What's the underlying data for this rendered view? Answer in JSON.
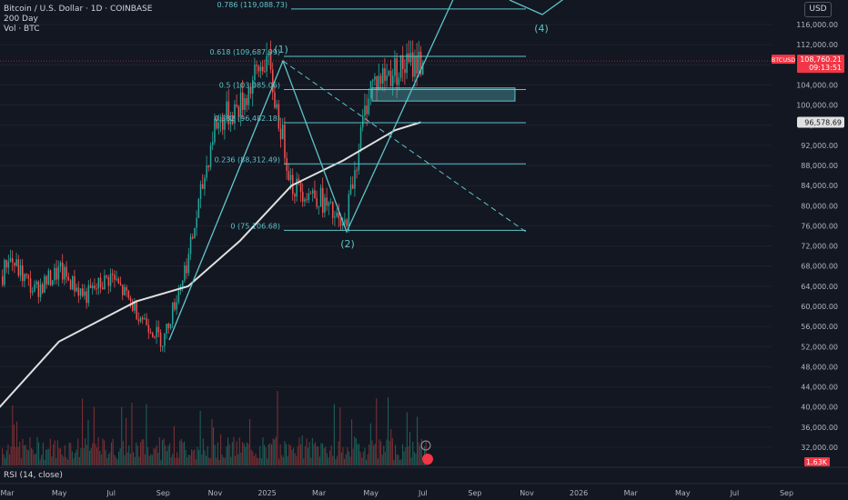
{
  "header": {
    "symbol_line": "Bitcoin / U.S. Dollar · 1D · COINBASE",
    "ma_label": "200 Day",
    "vol_label": "Vol · BTC"
  },
  "currency_button": "USD",
  "rsi_label": "RSI (14, close)",
  "price_axis": {
    "ticks": [
      "116,000.00",
      "112,000.00",
      "108,000.00",
      "104,000.00",
      "100,000.00",
      "96,000.00",
      "92,000.00",
      "88,000.00",
      "84,000.00",
      "80,000.00",
      "76,000.00",
      "72,000.00",
      "68,000.00",
      "64,000.00",
      "60,000.00",
      "56,000.00",
      "52,000.00",
      "48,000.00",
      "44,000.00",
      "40,000.00",
      "36,000.00",
      "32,000.00"
    ],
    "current_symbol": "BTCUSD",
    "current_price": "108,760.21",
    "countdown": "09:13:51",
    "ma_value": "96,578.69",
    "volume_value": "1.63K"
  },
  "time_axis": [
    "Mar",
    "May",
    "Jul",
    "Sep",
    "Nov",
    "2025",
    "Mar",
    "May",
    "Jul",
    "Sep",
    "Nov",
    "2026",
    "Mar",
    "May",
    "Jul",
    "Sep"
  ],
  "fib_levels": [
    {
      "label": "0.786 (119,088.73)",
      "price": 119088.73
    },
    {
      "label": "0.618 (109,687.99)",
      "price": 109687.99
    },
    {
      "label": "0.5 (103,085.06)",
      "price": 103085.06
    },
    {
      "label": "0.382 (96,482.18)",
      "price": 96482.18
    },
    {
      "label": "0.236 (88,312.49)",
      "price": 88312.49
    },
    {
      "label": "0 (75,106.68)",
      "price": 75106.68
    }
  ],
  "wave_labels": [
    "(1)",
    "(2)",
    "(4)"
  ],
  "colors": {
    "background": "#131722",
    "up": "#26a69a",
    "down": "#ef5350",
    "fib": "#5dc4c9",
    "ma": "#e0e0e0",
    "current_price_bg": "#f23645",
    "grid": "#1e222d"
  },
  "chart_data": {
    "type": "candlestick",
    "symbol": "BTCUSD",
    "timeframe": "1D",
    "ylim": [
      30000,
      120000
    ],
    "x_range": [
      "2024-02",
      "2026-09"
    ],
    "price_series": [
      {
        "date": "2024-02",
        "close": 51000
      },
      {
        "date": "2024-03",
        "close": 70000
      },
      {
        "date": "2024-04",
        "close": 63000
      },
      {
        "date": "2024-05",
        "close": 67000
      },
      {
        "date": "2024-06",
        "close": 62000
      },
      {
        "date": "2024-07",
        "close": 66000
      },
      {
        "date": "2024-08",
        "close": 59000
      },
      {
        "date": "2024-09",
        "close": 53000
      },
      {
        "date": "2024-10",
        "close": 70000
      },
      {
        "date": "2024-11",
        "close": 96000
      },
      {
        "date": "2024-12",
        "close": 100000
      },
      {
        "date": "2025-01",
        "close": 109600
      },
      {
        "date": "2025-02",
        "close": 84000
      },
      {
        "date": "2025-03",
        "close": 82000
      },
      {
        "date": "2025-04",
        "close": 75000
      },
      {
        "date": "2025-05",
        "close": 104000
      },
      {
        "date": "2025-06",
        "close": 107000
      },
      {
        "date": "2025-07",
        "close": 108760
      }
    ],
    "ma200": [
      {
        "date": "2024-02",
        "value": 36000
      },
      {
        "date": "2024-05",
        "value": 53000
      },
      {
        "date": "2024-08",
        "value": 61000
      },
      {
        "date": "2024-10",
        "value": 64000
      },
      {
        "date": "2024-12",
        "value": 73000
      },
      {
        "date": "2025-02",
        "value": 84000
      },
      {
        "date": "2025-04",
        "value": 89000
      },
      {
        "date": "2025-06",
        "value": 95000
      },
      {
        "date": "2025-07",
        "value": 96578.69
      }
    ],
    "current_price": 108760.21,
    "ma200_current": 96578.69
  }
}
